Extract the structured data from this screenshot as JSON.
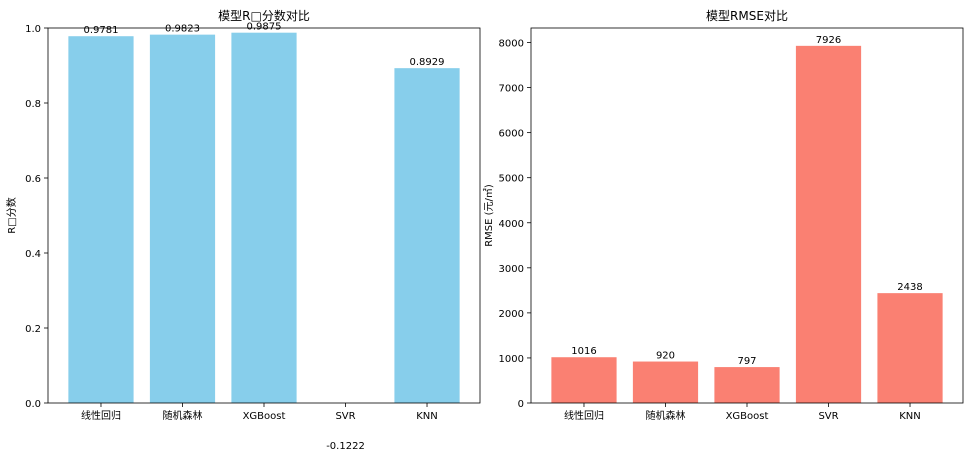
{
  "chart_data": [
    {
      "type": "bar",
      "title": "模型R□分数对比",
      "xlabel": "",
      "ylabel": "R□分数",
      "categories": [
        "线性回归",
        "随机森林",
        "XGBoost",
        "SVR",
        "KNN"
      ],
      "values": [
        0.9781,
        0.9823,
        0.9875,
        -0.1222,
        0.8929
      ],
      "value_labels": [
        "0.9781",
        "0.9823",
        "0.9875",
        "-0.1222",
        "0.8929"
      ],
      "ylim": [
        0,
        1.0
      ],
      "yticks": [
        0.0,
        0.2,
        0.4,
        0.6,
        0.8,
        1.0
      ],
      "ytick_labels": [
        "0.0",
        "0.2",
        "0.4",
        "0.6",
        "0.8",
        "1.0"
      ],
      "bar_color": "#87ceeb",
      "grid": false
    },
    {
      "type": "bar",
      "title": "模型RMSE对比",
      "xlabel": "",
      "ylabel": "RMSE (元/㎡)",
      "categories": [
        "线性回归",
        "随机森林",
        "XGBoost",
        "SVR",
        "KNN"
      ],
      "values": [
        1016,
        920,
        797,
        7926,
        2438
      ],
      "value_labels": [
        "1016",
        "920",
        "797",
        "7926",
        "2438"
      ],
      "ylim": [
        0,
        8322
      ],
      "yticks": [
        0,
        1000,
        2000,
        3000,
        4000,
        5000,
        6000,
        7000,
        8000
      ],
      "ytick_labels": [
        "0",
        "1000",
        "2000",
        "3000",
        "4000",
        "5000",
        "6000",
        "7000",
        "8000"
      ],
      "bar_color": "#fa8072",
      "grid": false
    }
  ]
}
